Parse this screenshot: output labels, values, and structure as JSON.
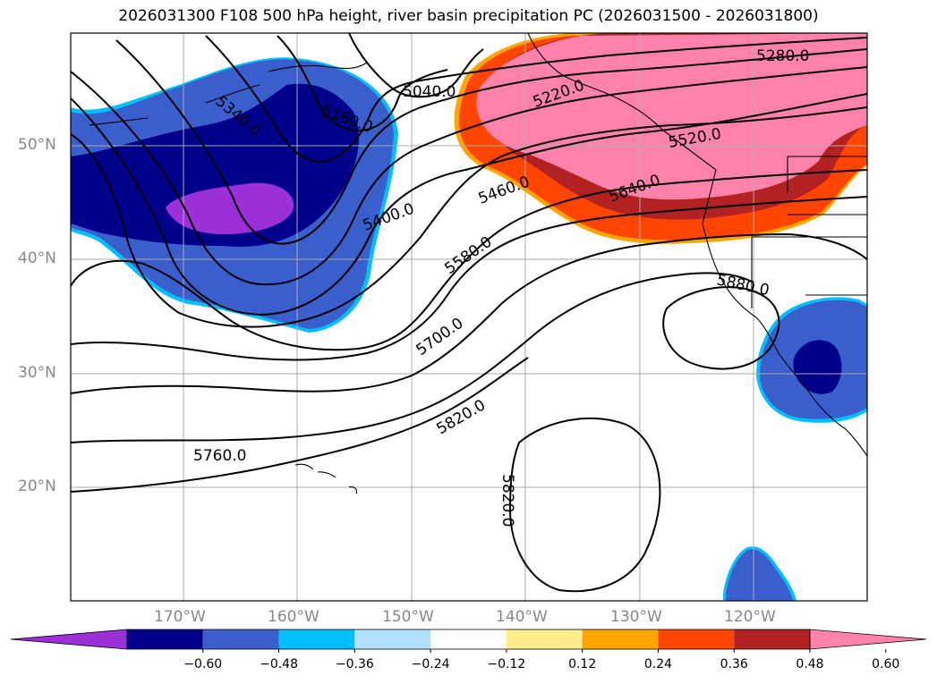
{
  "title": "2026031300 F108 500 hPa height, river basin precipitation PC (2026031500 - 2026031800)",
  "lat_labels": [
    "50°N",
    "40°N",
    "30°N",
    "20°N"
  ],
  "lon_labels": [
    "170°W",
    "160°W",
    "150°W",
    "140°W",
    "130°W",
    "120°W"
  ],
  "contour_labels": [
    "5040.0",
    "5160.0",
    "5220.0",
    "5280.0",
    "5340.0",
    "5400.0",
    "5460.0",
    "5520.0",
    "5580.0",
    "5640.0",
    "5700.0",
    "5760.0",
    "5820.0",
    "5820.0",
    "5880.0"
  ],
  "colorbar": {
    "ticks": [
      "−0.60",
      "−0.48",
      "−0.36",
      "−0.24",
      "−0.12",
      "0.12",
      "0.24",
      "0.36",
      "0.48",
      "0.60"
    ],
    "colors": [
      "#9b30d9",
      "#00008b",
      "#3a5fcd",
      "#00bfff",
      "#b0e2ff",
      "#ffffff",
      "#ffec8b",
      "#ffa500",
      "#ff4500",
      "#b22222",
      "#ff82ab"
    ]
  },
  "map_colors": {
    "neg_deep": "#9b30d9",
    "neg_dark": "#00008b",
    "neg_mid": "#3a5fcd",
    "neg_light": "#00bfff",
    "pos_orange": "#ffa500",
    "pos_red": "#ff4500",
    "pos_dark": "#b22222",
    "pos_pink": "#ff82ab"
  }
}
